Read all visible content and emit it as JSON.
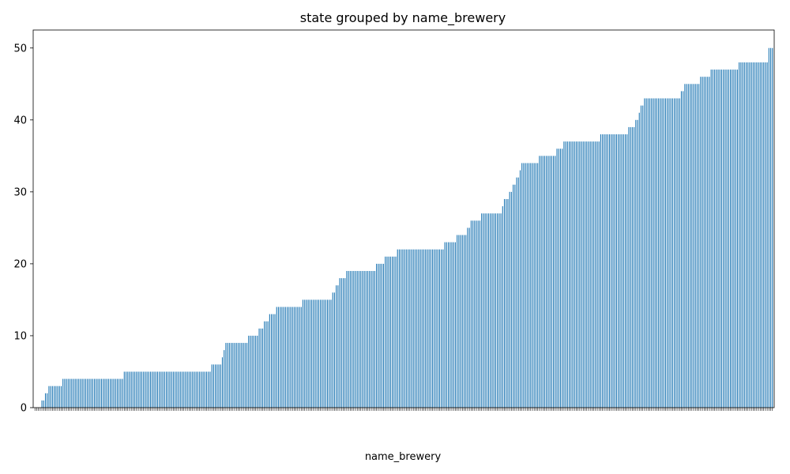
{
  "chart_data": {
    "type": "bar",
    "title": "state grouped by name_brewery",
    "xlabel": "name_brewery",
    "ylabel": "",
    "ylim": [
      0,
      52.5
    ],
    "yticks": [
      0,
      10,
      20,
      30,
      40,
      50
    ],
    "bar_color": "#1f77b4",
    "x_tick_labels_note": "category tick labels are illegible (rotated and overlapping)",
    "values": [
      0,
      0,
      0,
      0,
      1,
      1,
      2,
      2,
      3,
      3,
      3,
      3,
      3,
      3,
      3,
      3,
      4,
      4,
      4,
      4,
      4,
      4,
      4,
      4,
      4,
      4,
      4,
      4,
      4,
      4,
      4,
      4,
      4,
      4,
      4,
      4,
      4,
      4,
      4,
      4,
      4,
      4,
      4,
      4,
      4,
      4,
      4,
      4,
      4,
      4,
      4,
      5,
      5,
      5,
      5,
      5,
      5,
      5,
      5,
      5,
      5,
      5,
      5,
      5,
      5,
      5,
      5,
      5,
      5,
      5,
      5,
      5,
      5,
      5,
      5,
      5,
      5,
      5,
      5,
      5,
      5,
      5,
      5,
      5,
      5,
      5,
      5,
      5,
      5,
      5,
      5,
      5,
      5,
      5,
      5,
      5,
      5,
      5,
      5,
      5,
      5,
      6,
      6,
      6,
      6,
      6,
      6,
      7,
      8,
      9,
      9,
      9,
      9,
      9,
      9,
      9,
      9,
      9,
      9,
      9,
      9,
      9,
      10,
      10,
      10,
      10,
      10,
      10,
      11,
      11,
      11,
      12,
      12,
      12,
      13,
      13,
      13,
      13,
      14,
      14,
      14,
      14,
      14,
      14,
      14,
      14,
      14,
      14,
      14,
      14,
      14,
      14,
      14,
      15,
      15,
      15,
      15,
      15,
      15,
      15,
      15,
      15,
      15,
      15,
      15,
      15,
      15,
      15,
      15,
      15,
      16,
      16,
      17,
      17,
      18,
      18,
      18,
      18,
      19,
      19,
      19,
      19,
      19,
      19,
      19,
      19,
      19,
      19,
      19,
      19,
      19,
      19,
      19,
      19,
      19,
      20,
      20,
      20,
      20,
      20,
      21,
      21,
      21,
      21,
      21,
      21,
      21,
      22,
      22,
      22,
      22,
      22,
      22,
      22,
      22,
      22,
      22,
      22,
      22,
      22,
      22,
      22,
      22,
      22,
      22,
      22,
      22,
      22,
      22,
      22,
      22,
      22,
      22,
      22,
      23,
      23,
      23,
      23,
      23,
      23,
      23,
      24,
      24,
      24,
      24,
      24,
      24,
      25,
      25,
      26,
      26,
      26,
      26,
      26,
      26,
      27,
      27,
      27,
      27,
      27,
      27,
      27,
      27,
      27,
      27,
      27,
      27,
      28,
      29,
      29,
      29,
      30,
      30,
      31,
      31,
      32,
      32,
      33,
      34,
      34,
      34,
      34,
      34,
      34,
      34,
      34,
      34,
      34,
      35,
      35,
      35,
      35,
      35,
      35,
      35,
      35,
      35,
      35,
      36,
      36,
      36,
      36,
      37,
      37,
      37,
      37,
      37,
      37,
      37,
      37,
      37,
      37,
      37,
      37,
      37,
      37,
      37,
      37,
      37,
      37,
      37,
      37,
      37,
      38,
      38,
      38,
      38,
      38,
      38,
      38,
      38,
      38,
      38,
      38,
      38,
      38,
      38,
      38,
      38,
      39,
      39,
      39,
      39,
      40,
      40,
      41,
      42,
      42,
      43,
      43,
      43,
      43,
      43,
      43,
      43,
      43,
      43,
      43,
      43,
      43,
      43,
      43,
      43,
      43,
      43,
      43,
      43,
      43,
      43,
      44,
      44,
      45,
      45,
      45,
      45,
      45,
      45,
      45,
      45,
      45,
      46,
      46,
      46,
      46,
      46,
      46,
      47,
      47,
      47,
      47,
      47,
      47,
      47,
      47,
      47,
      47,
      47,
      47,
      47,
      47,
      47,
      47,
      48,
      48,
      48,
      48,
      48,
      48,
      48,
      48,
      48,
      48,
      48,
      48,
      48,
      48,
      48,
      48,
      48,
      50,
      50,
      50
    ]
  }
}
